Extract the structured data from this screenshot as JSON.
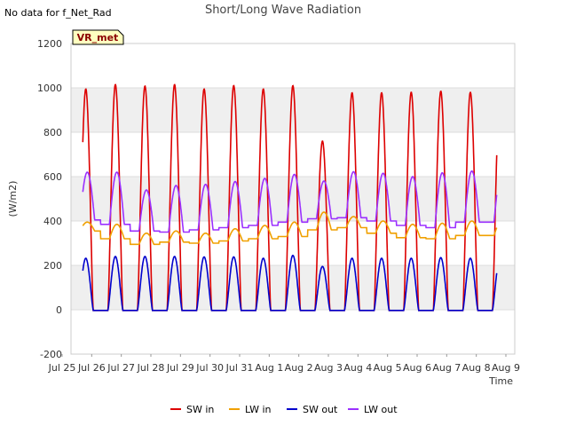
{
  "no_data_note": "No data for f_Net_Rad",
  "site_badge": "VR_met",
  "chart_data": {
    "type": "line",
    "title": "Short/Long Wave Radiation",
    "xlabel": "Time",
    "ylabel": "(W/m2)",
    "xlim": [
      0,
      15
    ],
    "ylim": [
      -200,
      1200
    ],
    "yticks": [
      -200,
      0,
      200,
      400,
      600,
      800,
      1000,
      1200
    ],
    "xticks": [
      {
        "v": 0,
        "label": "Jul 25"
      },
      {
        "v": 1,
        "label": "Jul 26"
      },
      {
        "v": 2,
        "label": "Jul 27"
      },
      {
        "v": 3,
        "label": "Jul 28"
      },
      {
        "v": 4,
        "label": "Jul 29"
      },
      {
        "v": 5,
        "label": "Jul 30"
      },
      {
        "v": 6,
        "label": "Jul 31"
      },
      {
        "v": 7,
        "label": "Aug 1"
      },
      {
        "v": 8,
        "label": "Aug 2"
      },
      {
        "v": 9,
        "label": "Aug 3"
      },
      {
        "v": 10,
        "label": "Aug 4"
      },
      {
        "v": 11,
        "label": "Aug 5"
      },
      {
        "v": 12,
        "label": "Aug 6"
      },
      {
        "v": 13,
        "label": "Aug 7"
      },
      {
        "v": 14,
        "label": "Aug 8"
      },
      {
        "v": 15,
        "label": "Aug 9"
      }
    ],
    "band_fill": "#efefef",
    "legend_position": "bottom",
    "series": [
      {
        "name": "SW in",
        "color": "#dd0000",
        "daily_peak": [
          995,
          1015,
          1008,
          1015,
          995,
          1010,
          995,
          1010,
          760,
          978,
          978,
          980,
          985,
          980
        ]
      },
      {
        "name": "LW in",
        "color": "#f0a000",
        "daily_peak": [
          395,
          385,
          345,
          355,
          345,
          365,
          380,
          395,
          440,
          420,
          400,
          385,
          390,
          400
        ],
        "daily_min": [
          355,
          320,
          295,
          305,
          300,
          310,
          320,
          330,
          360,
          370,
          345,
          325,
          320,
          335
        ]
      },
      {
        "name": "SW out",
        "color": "#0000cc",
        "daily_peak": [
          232,
          240,
          240,
          240,
          238,
          238,
          232,
          245,
          195,
          232,
          232,
          232,
          235,
          232
        ]
      },
      {
        "name": "LW out",
        "color": "#9b30ff",
        "daily_peak": [
          620,
          620,
          540,
          560,
          565,
          578,
          592,
          610,
          580,
          622,
          615,
          600,
          617,
          625
        ],
        "daily_min": [
          405,
          385,
          355,
          350,
          360,
          370,
          380,
          395,
          410,
          415,
          400,
          380,
          370,
          395
        ]
      }
    ]
  }
}
